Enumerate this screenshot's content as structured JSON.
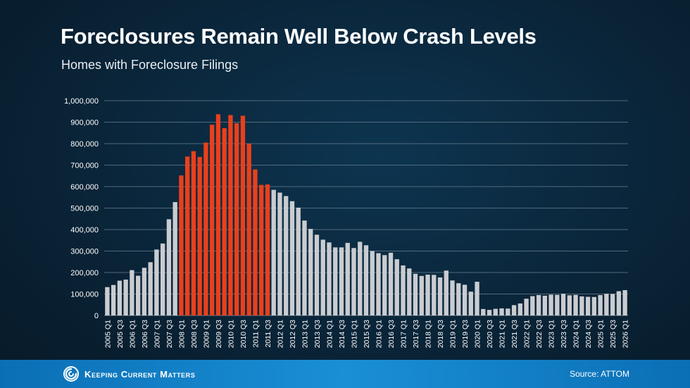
{
  "header": {
    "title": "Foreclosures Remain Well Below Crash Levels",
    "subtitle": "Homes with Foreclosure Filings"
  },
  "footer": {
    "brand": "Keeping Current Matters",
    "source": "Source: ATTOM"
  },
  "colors": {
    "normal_bar": "#c9ccd0",
    "crash_bar": "#e8401c",
    "grid": "#6a7f8f"
  },
  "chart_data": {
    "type": "bar",
    "ylim": [
      0,
      1000000
    ],
    "yticks": [
      0,
      100000,
      200000,
      300000,
      400000,
      500000,
      600000,
      700000,
      800000,
      900000,
      1000000
    ],
    "ytick_labels": [
      "0",
      "100,000",
      "200,000",
      "300,000",
      "400,000",
      "500,000",
      "600,000",
      "700,000",
      "800,000",
      "900,000",
      "1,000,000"
    ],
    "highlight_range": [
      "2008 Q1",
      "2011 Q3"
    ],
    "categories": [
      "2005 Q1",
      "2005 Q2",
      "2005 Q3",
      "2005 Q4",
      "2006 Q1",
      "2006 Q2",
      "2006 Q3",
      "2006 Q4",
      "2007 Q1",
      "2007 Q2",
      "2007 Q3",
      "2007 Q4",
      "2008 Q1",
      "2008 Q2",
      "2008 Q3",
      "2008 Q4",
      "2009 Q1",
      "2009 Q2",
      "2009 Q3",
      "2009 Q4",
      "2010 Q1",
      "2010 Q2",
      "2010 Q3",
      "2010 Q4",
      "2011 Q1",
      "2011 Q2",
      "2011 Q3",
      "2011 Q4",
      "2012 Q1",
      "2012 Q2",
      "2012 Q3",
      "2012 Q4",
      "2013 Q1",
      "2013 Q2",
      "2013 Q3",
      "2013 Q4",
      "2014 Q1",
      "2014 Q2",
      "2014 Q3",
      "2014 Q4",
      "2015 Q1",
      "2015 Q2",
      "2015 Q3",
      "2015 Q4",
      "2016 Q1",
      "2016 Q2",
      "2016 Q3",
      "2016 Q4",
      "2017 Q1",
      "2017 Q2",
      "2017 Q3",
      "2017 Q4",
      "2018 Q1",
      "2018 Q2",
      "2018 Q3",
      "2018 Q4",
      "2019 Q1",
      "2019 Q2",
      "2019 Q3",
      "2019 Q4",
      "2020 Q1",
      "2020 Q2",
      "2020 Q3",
      "2020 Q4",
      "2021 Q1",
      "2021 Q2",
      "2021 Q3",
      "2021 Q4",
      "2022 Q1",
      "2022 Q2",
      "2022 Q3",
      "2022 Q4",
      "2023 Q1",
      "2023 Q2",
      "2023 Q3",
      "2023 Q4",
      "2024 Q1",
      "2024 Q2",
      "2024 Q3",
      "2024 Q4",
      "2025 Q1",
      "2025 Q2",
      "2025 Q3",
      "2025 Q4",
      "2026 Q1"
    ],
    "values": [
      132000,
      142000,
      162000,
      167000,
      211000,
      185000,
      222000,
      248000,
      307000,
      335000,
      448000,
      528000,
      652000,
      740000,
      765000,
      738000,
      805000,
      888000,
      937000,
      872000,
      933000,
      895000,
      930000,
      800000,
      680000,
      608000,
      610000,
      585000,
      572000,
      556000,
      532000,
      502000,
      442000,
      403000,
      376000,
      353000,
      340000,
      317000,
      317000,
      338000,
      314000,
      343000,
      327000,
      300000,
      290000,
      281000,
      292000,
      262000,
      233000,
      219000,
      194000,
      184000,
      190000,
      189000,
      177000,
      209000,
      163000,
      150000,
      143000,
      111000,
      157000,
      30000,
      26000,
      31000,
      33000,
      32000,
      48000,
      56000,
      78000,
      90000,
      95000,
      92000,
      97000,
      96000,
      101000,
      94000,
      96000,
      89000,
      87000,
      86000,
      95000,
      101000,
      100000,
      113000,
      118000
    ]
  }
}
